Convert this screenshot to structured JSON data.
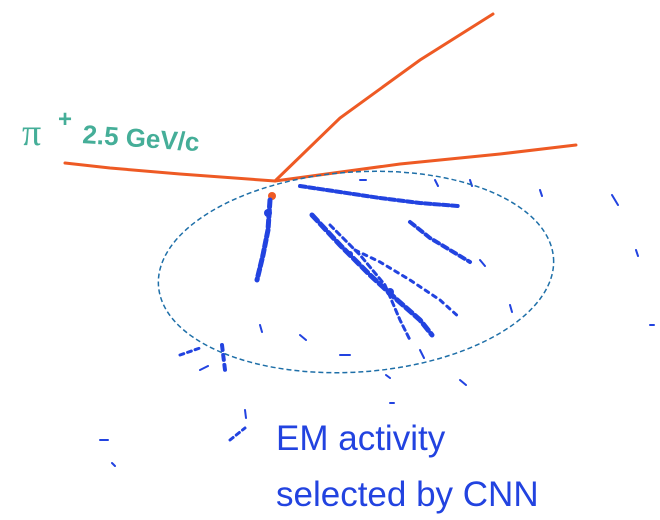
{
  "label": {
    "particle": "π",
    "charge": "+",
    "momentum": "2.5 GeV/c"
  },
  "caption": [
    "EM activity",
    "selected by CNN"
  ]
}
